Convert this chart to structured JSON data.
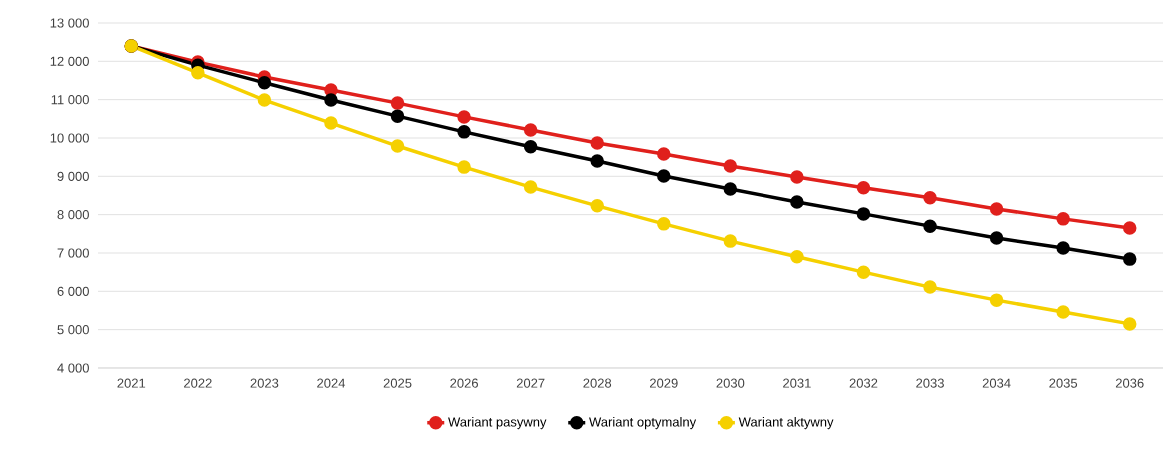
{
  "chart_data": {
    "type": "line",
    "categories": [
      "2021",
      "2022",
      "2023",
      "2024",
      "2025",
      "2026",
      "2027",
      "2028",
      "2029",
      "2030",
      "2031",
      "2032",
      "2033",
      "2034",
      "2035",
      "2036"
    ],
    "series": [
      {
        "name": "Wariant pasywny",
        "color": "#e0201c",
        "values": [
          12400,
          11980,
          11590,
          11250,
          10910,
          10550,
          10210,
          9870,
          9580,
          9270,
          8980,
          8700,
          8440,
          8150,
          7890,
          7650
        ]
      },
      {
        "name": "Wariant optymalny",
        "color": "#000000",
        "values": [
          12400,
          11900,
          11440,
          10990,
          10570,
          10160,
          9770,
          9400,
          9010,
          8670,
          8330,
          8020,
          7700,
          7390,
          7130,
          6840
        ]
      },
      {
        "name": "Wariant aktywny",
        "color": "#f5d000",
        "values": [
          12400,
          11700,
          10990,
          10390,
          9790,
          9240,
          8720,
          8230,
          7760,
          7310,
          6900,
          6500,
          6110,
          5770,
          5460,
          5150
        ]
      }
    ],
    "ylim": [
      4000,
      13000
    ],
    "yticks": [
      {
        "value": 4000,
        "label": "4 000"
      },
      {
        "value": 5000,
        "label": "5 000"
      },
      {
        "value": 6000,
        "label": "6 000"
      },
      {
        "value": 7000,
        "label": "7 000"
      },
      {
        "value": 8000,
        "label": "8 000"
      },
      {
        "value": 9000,
        "label": "9 000"
      },
      {
        "value": 10000,
        "label": "10 000"
      },
      {
        "value": 11000,
        "label": "11 000"
      },
      {
        "value": 12000,
        "label": "12 000"
      },
      {
        "value": 13000,
        "label": "13 000"
      }
    ],
    "grid": "y",
    "legend": "bottom",
    "marker": "circle",
    "line_style": "solid"
  }
}
